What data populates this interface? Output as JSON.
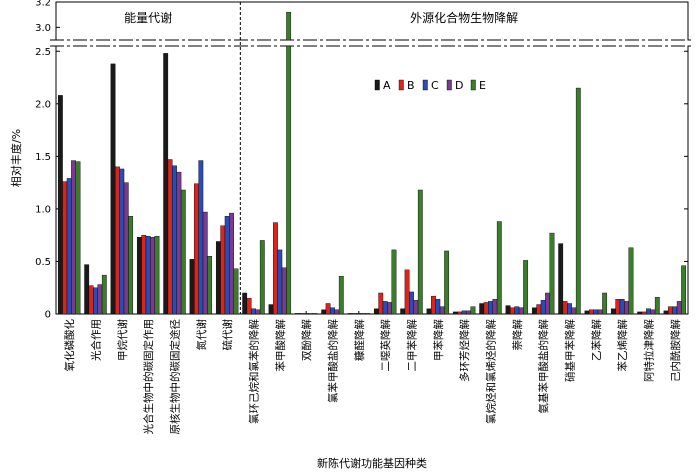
{
  "chart_data": {
    "type": "bar",
    "xlabel": "新陈代谢功能基因种类",
    "ylabel": "相对丰度/%",
    "ylim": [
      0,
      2.55
    ],
    "ylim_upper": [
      2.9,
      3.2
    ],
    "axis_break": true,
    "y_ticks": [
      "0",
      "0.5",
      "1.0",
      "1.5",
      "2.0",
      "2.5"
    ],
    "y_ticks_upper": [
      "3.0",
      "3.2"
    ],
    "grid": false,
    "legend_position": "top-center",
    "groups": [
      {
        "label": "能量代谢",
        "span": [
          0,
          6
        ]
      },
      {
        "label": "外源化合物生物降解",
        "span": [
          7,
          23
        ]
      }
    ],
    "categories": [
      "氧化磷酸化",
      "光合作用",
      "甲烷代谢",
      "光合生物中的碳固定作用",
      "原核生物中的碳固定途径",
      "氮代谢",
      "硫代谢",
      "氯环己烷和氯苯的降解",
      "苯甲酸降解",
      "双酚降解",
      "氯苯甲酸盐的降解",
      "糠醛降解",
      "二噁英降解",
      "二甲苯降解",
      "甲苯降解",
      "多环芳烃降解",
      "氯烷烃和氯烯烃的降解",
      "萘降解",
      "氨基苯甲酸盐的降解",
      "硝基甲苯降解",
      "乙苯降解",
      "苯乙烯降解",
      "阿特拉津降解",
      "己内酰胺降解"
    ],
    "series": [
      {
        "name": "A",
        "color": "#1a1a1a",
        "values": [
          2.08,
          0.47,
          2.38,
          0.73,
          2.48,
          0.52,
          0.69,
          0.2,
          0.09,
          0.005,
          0.04,
          0.005,
          0.05,
          0.05,
          0.05,
          0.02,
          0.1,
          0.08,
          0.06,
          0.67,
          0.03,
          0.05,
          0.02,
          0.03
        ]
      },
      {
        "name": "B",
        "color": "#d9261c",
        "values": [
          1.26,
          0.27,
          1.4,
          0.75,
          1.47,
          1.24,
          0.84,
          0.15,
          0.87,
          0.005,
          0.1,
          0.005,
          0.2,
          0.42,
          0.17,
          0.02,
          0.11,
          0.06,
          0.09,
          0.12,
          0.04,
          0.14,
          0.02,
          0.07
        ]
      },
      {
        "name": "C",
        "color": "#2a4db5",
        "values": [
          1.29,
          0.25,
          1.38,
          0.74,
          1.41,
          1.46,
          0.93,
          0.05,
          0.61,
          0.005,
          0.06,
          0.005,
          0.12,
          0.21,
          0.14,
          0.03,
          0.12,
          0.07,
          0.13,
          0.1,
          0.04,
          0.14,
          0.05,
          0.07
        ]
      },
      {
        "name": "D",
        "color": "#7a3a90",
        "values": [
          1.46,
          0.28,
          1.25,
          0.73,
          1.35,
          0.97,
          0.96,
          0.04,
          0.44,
          0.005,
          0.04,
          0.005,
          0.11,
          0.13,
          0.07,
          0.03,
          0.14,
          0.06,
          0.2,
          0.06,
          0.04,
          0.12,
          0.04,
          0.12
        ]
      },
      {
        "name": "E",
        "color": "#3a7d2a",
        "values": [
          1.45,
          0.37,
          0.93,
          0.74,
          1.18,
          0.55,
          0.43,
          0.7,
          3.12,
          0.005,
          0.36,
          0.005,
          0.61,
          1.18,
          0.6,
          0.07,
          0.88,
          0.51,
          0.77,
          2.15,
          0.2,
          0.63,
          0.16,
          0.46
        ]
      }
    ]
  }
}
